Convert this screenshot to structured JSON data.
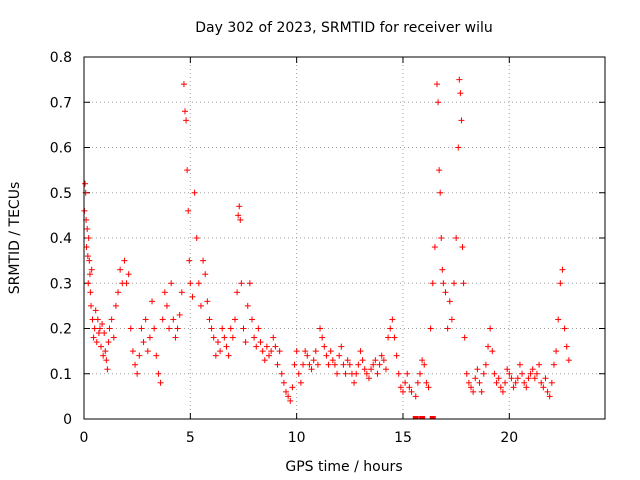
{
  "chart_data": {
    "type": "scatter",
    "title": "Day 302 of 2023, SRMTID for receiver wilu",
    "xlabel": "GPS time / hours",
    "ylabel": "SRMTID / TECUs",
    "xlim": [
      0,
      24.5
    ],
    "ylim": [
      0,
      0.8
    ],
    "xticks": [
      0,
      5,
      10,
      15,
      20
    ],
    "xtick_labels": [
      "0",
      "5",
      "10",
      "15",
      "20"
    ],
    "yticks": [
      0,
      0.1,
      0.2,
      0.3,
      0.4,
      0.5,
      0.6,
      0.7,
      0.8
    ],
    "ytick_labels": [
      "0",
      "0.1",
      "0.2",
      "0.3",
      "0.4",
      "0.5",
      "0.6",
      "0.7",
      "0.8"
    ],
    "grid": true,
    "marker": "plus",
    "color": "#ff0000",
    "series": [
      {
        "name": "SRMTID",
        "x": [
          0.02,
          0.05,
          0.08,
          0.1,
          0.12,
          0.15,
          0.18,
          0.2,
          0.22,
          0.25,
          0.28,
          0.3,
          0.33,
          0.36,
          0.4,
          0.45,
          0.5,
          0.55,
          0.6,
          0.65,
          0.7,
          0.75,
          0.8,
          0.85,
          0.9,
          0.95,
          1.0,
          1.05,
          1.1,
          1.15,
          1.2,
          1.3,
          1.4,
          1.5,
          1.6,
          1.7,
          1.8,
          1.9,
          2.0,
          2.1,
          2.2,
          2.3,
          2.4,
          2.5,
          2.6,
          2.7,
          2.8,
          2.9,
          3.0,
          3.1,
          3.2,
          3.3,
          3.4,
          3.5,
          3.6,
          3.7,
          3.8,
          3.9,
          4.0,
          4.1,
          4.2,
          4.3,
          4.4,
          4.5,
          4.6,
          4.7,
          4.75,
          4.8,
          4.85,
          4.9,
          4.95,
          5.0,
          5.1,
          5.2,
          5.3,
          5.4,
          5.5,
          5.6,
          5.7,
          5.8,
          5.9,
          6.0,
          6.1,
          6.2,
          6.3,
          6.4,
          6.5,
          6.6,
          6.7,
          6.8,
          6.9,
          7.0,
          7.1,
          7.2,
          7.25,
          7.3,
          7.35,
          7.4,
          7.5,
          7.6,
          7.7,
          7.8,
          7.9,
          8.0,
          8.1,
          8.2,
          8.3,
          8.4,
          8.5,
          8.6,
          8.7,
          8.8,
          8.9,
          9.0,
          9.1,
          9.2,
          9.3,
          9.4,
          9.5,
          9.6,
          9.7,
          9.8,
          9.9,
          10.0,
          10.1,
          10.2,
          10.3,
          10.4,
          10.5,
          10.6,
          10.7,
          10.8,
          10.9,
          11.0,
          11.1,
          11.2,
          11.3,
          11.4,
          11.5,
          11.6,
          11.7,
          11.8,
          11.9,
          12.0,
          12.1,
          12.2,
          12.3,
          12.4,
          12.5,
          12.6,
          12.7,
          12.8,
          12.9,
          13.0,
          13.1,
          13.2,
          13.3,
          13.4,
          13.5,
          13.6,
          13.7,
          13.8,
          13.9,
          14.0,
          14.1,
          14.2,
          14.3,
          14.4,
          14.5,
          14.6,
          14.7,
          14.8,
          14.9,
          15.0,
          15.1,
          15.2,
          15.3,
          15.4,
          15.6,
          15.7,
          15.8,
          15.9,
          16.0,
          16.1,
          16.2,
          16.3,
          16.4,
          16.5,
          16.6,
          16.65,
          16.7,
          16.75,
          16.8,
          16.85,
          16.9,
          17.0,
          17.1,
          17.2,
          17.3,
          17.4,
          17.5,
          17.6,
          17.65,
          17.7,
          17.75,
          17.8,
          17.85,
          17.9,
          18.0,
          18.1,
          18.2,
          18.3,
          18.4,
          18.5,
          18.6,
          18.7,
          18.8,
          18.9,
          19.0,
          19.1,
          19.2,
          19.3,
          19.4,
          19.5,
          19.6,
          19.7,
          19.8,
          19.9,
          20.0,
          20.1,
          20.2,
          20.3,
          20.4,
          20.5,
          20.6,
          20.7,
          20.8,
          20.9,
          21.0,
          21.1,
          21.2,
          21.3,
          21.4,
          21.5,
          21.6,
          21.7,
          21.8,
          21.9,
          22.0,
          22.1,
          22.2,
          22.3,
          22.4,
          22.5,
          22.6,
          22.7,
          22.8
        ],
        "y": [
          0.46,
          0.52,
          0.5,
          0.44,
          0.38,
          0.42,
          0.36,
          0.3,
          0.4,
          0.35,
          0.32,
          0.28,
          0.25,
          0.33,
          0.22,
          0.18,
          0.2,
          0.24,
          0.17,
          0.22,
          0.19,
          0.2,
          0.16,
          0.21,
          0.14,
          0.19,
          0.15,
          0.13,
          0.11,
          0.17,
          0.2,
          0.22,
          0.18,
          0.25,
          0.28,
          0.33,
          0.3,
          0.35,
          0.3,
          0.32,
          0.2,
          0.15,
          0.12,
          0.1,
          0.14,
          0.2,
          0.17,
          0.22,
          0.15,
          0.18,
          0.26,
          0.2,
          0.14,
          0.1,
          0.08,
          0.22,
          0.28,
          0.25,
          0.2,
          0.3,
          0.22,
          0.18,
          0.2,
          0.23,
          0.28,
          0.74,
          0.68,
          0.66,
          0.55,
          0.46,
          0.35,
          0.3,
          0.27,
          0.5,
          0.4,
          0.3,
          0.25,
          0.35,
          0.32,
          0.26,
          0.22,
          0.2,
          0.18,
          0.14,
          0.17,
          0.15,
          0.2,
          0.18,
          0.16,
          0.14,
          0.2,
          0.18,
          0.22,
          0.28,
          0.45,
          0.47,
          0.44,
          0.3,
          0.2,
          0.17,
          0.25,
          0.3,
          0.22,
          0.18,
          0.16,
          0.2,
          0.17,
          0.15,
          0.13,
          0.16,
          0.14,
          0.15,
          0.18,
          0.16,
          0.12,
          0.15,
          0.1,
          0.08,
          0.06,
          0.05,
          0.04,
          0.07,
          0.12,
          0.15,
          0.1,
          0.08,
          0.12,
          0.15,
          0.14,
          0.12,
          0.11,
          0.13,
          0.15,
          0.12,
          0.2,
          0.18,
          0.16,
          0.14,
          0.12,
          0.15,
          0.13,
          0.12,
          0.1,
          0.14,
          0.16,
          0.12,
          0.1,
          0.13,
          0.12,
          0.1,
          0.08,
          0.1,
          0.12,
          0.15,
          0.13,
          0.11,
          0.1,
          0.09,
          0.11,
          0.12,
          0.13,
          0.1,
          0.12,
          0.14,
          0.13,
          0.11,
          0.18,
          0.2,
          0.22,
          0.18,
          0.14,
          0.1,
          0.07,
          0.06,
          0.08,
          0.1,
          0.07,
          0.06,
          0.05,
          0.08,
          0.1,
          0.13,
          0.12,
          0.08,
          0.07,
          0.2,
          0.3,
          0.38,
          0.74,
          0.7,
          0.55,
          0.5,
          0.4,
          0.33,
          0.3,
          0.28,
          0.2,
          0.26,
          0.22,
          0.3,
          0.4,
          0.6,
          0.75,
          0.72,
          0.66,
          0.38,
          0.3,
          0.18,
          0.1,
          0.08,
          0.07,
          0.06,
          0.09,
          0.11,
          0.08,
          0.06,
          0.1,
          0.12,
          0.16,
          0.2,
          0.15,
          0.1,
          0.08,
          0.09,
          0.07,
          0.06,
          0.08,
          0.11,
          0.1,
          0.09,
          0.07,
          0.08,
          0.09,
          0.12,
          0.1,
          0.08,
          0.07,
          0.09,
          0.1,
          0.11,
          0.09,
          0.1,
          0.12,
          0.08,
          0.07,
          0.09,
          0.06,
          0.05,
          0.08,
          0.12,
          0.15,
          0.22,
          0.3,
          0.33,
          0.2,
          0.16,
          0.13
        ],
        "baseline_markers_x": [
          15.6,
          15.9,
          16.4
        ],
        "baseline_markers_y": [
          0,
          0,
          0
        ]
      }
    ]
  }
}
